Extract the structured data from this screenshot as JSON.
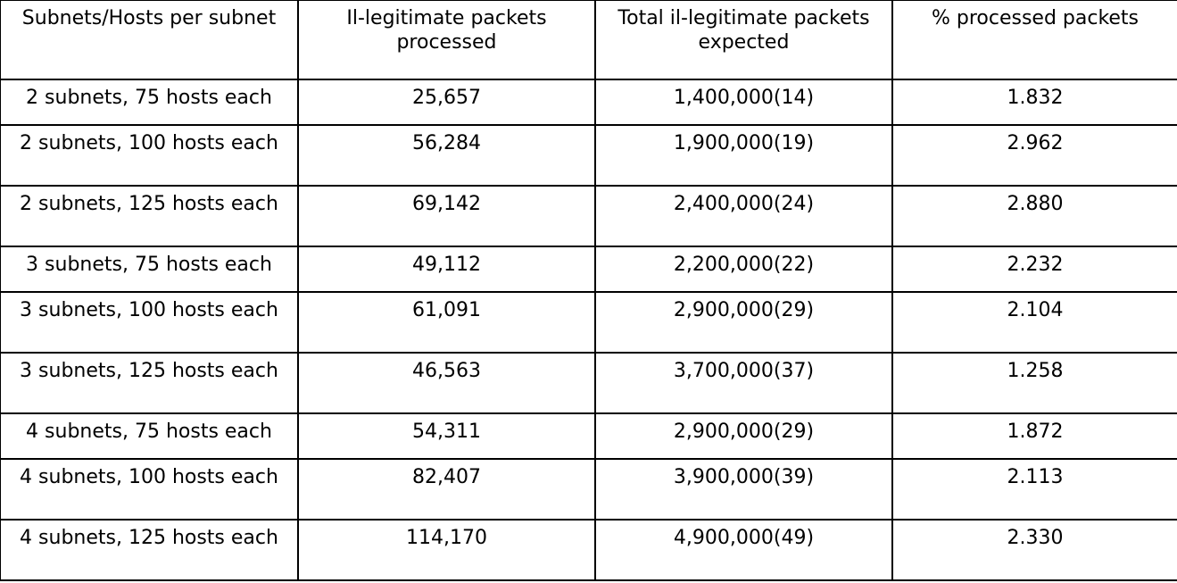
{
  "table": {
    "headers": [
      "Subnets/Hosts per subnet",
      "Il-legitimate packets processed",
      "Total il-legitimate packets expected",
      "% processed packets"
    ],
    "rows": [
      [
        "2 subnets, 75 hosts each",
        "25,657",
        "1,400,000(14)",
        "1.832"
      ],
      [
        "2 subnets, 100 hosts each",
        "56,284",
        "1,900,000(19)",
        "2.962"
      ],
      [
        "2 subnets, 125 hosts each",
        "69,142",
        "2,400,000(24)",
        "2.880"
      ],
      [
        "3 subnets, 75 hosts each",
        "49,112",
        "2,200,000(22)",
        "2.232"
      ],
      [
        "3 subnets, 100 hosts each",
        "61,091",
        "2,900,000(29)",
        "2.104"
      ],
      [
        "3 subnets, 125 hosts each",
        "46,563",
        "3,700,000(37)",
        "1.258"
      ],
      [
        "4 subnets, 75 hosts each",
        "54,311",
        "2,900,000(29)",
        "1.872"
      ],
      [
        "4 subnets, 100 hosts each",
        "82,407",
        "3,900,000(39)",
        "2.113"
      ],
      [
        "4 subnets, 125 hosts each",
        "114,170",
        "4,900,000(49)",
        "2.330"
      ]
    ]
  }
}
